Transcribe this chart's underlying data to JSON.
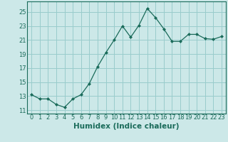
{
  "x": [
    0,
    1,
    2,
    3,
    4,
    5,
    6,
    7,
    8,
    9,
    10,
    11,
    12,
    13,
    14,
    15,
    16,
    17,
    18,
    19,
    20,
    21,
    22,
    23
  ],
  "y": [
    13.2,
    12.6,
    12.6,
    11.8,
    11.4,
    12.6,
    13.2,
    14.8,
    17.2,
    19.2,
    21.0,
    23.0,
    21.4,
    23.1,
    25.5,
    24.2,
    22.6,
    20.8,
    20.8,
    21.8,
    21.8,
    21.2,
    21.1,
    21.5
  ],
  "line_color": "#1a6b5a",
  "marker": "D",
  "marker_size": 2,
  "bg_color": "#cce8e8",
  "grid_color": "#99cccc",
  "xlabel": "Humidex (Indice chaleur)",
  "xlim": [
    -0.5,
    23.5
  ],
  "ylim": [
    10.5,
    26.5
  ],
  "xticks": [
    0,
    1,
    2,
    3,
    4,
    5,
    6,
    7,
    8,
    9,
    10,
    11,
    12,
    13,
    14,
    15,
    16,
    17,
    18,
    19,
    20,
    21,
    22,
    23
  ],
  "yticks": [
    11,
    13,
    15,
    17,
    19,
    21,
    23,
    25
  ],
  "tick_fontsize": 6,
  "xlabel_fontsize": 7.5
}
